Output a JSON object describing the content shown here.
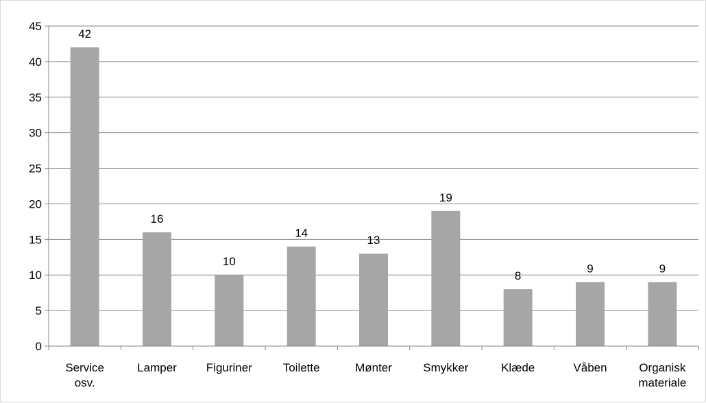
{
  "chart_data": {
    "type": "bar",
    "categories": [
      [
        "Service",
        "osv."
      ],
      [
        "Lamper"
      ],
      [
        "Figuriner"
      ],
      [
        "Toilette"
      ],
      [
        "Mønter"
      ],
      [
        "Smykker"
      ],
      [
        "Klæde"
      ],
      [
        "Våben"
      ],
      [
        "Organisk",
        "materiale"
      ]
    ],
    "values": [
      42,
      16,
      10,
      14,
      13,
      19,
      8,
      9,
      9
    ],
    "data_labels": [
      "42",
      "16",
      "10",
      "14",
      "13",
      "19",
      "8",
      "9",
      "9"
    ],
    "ylim": [
      0,
      45
    ],
    "yticks": [
      0,
      5,
      10,
      15,
      20,
      25,
      30,
      35,
      40,
      45
    ],
    "grid": true,
    "bar_color": "#a6a6a6",
    "grid_color": "#868686"
  }
}
